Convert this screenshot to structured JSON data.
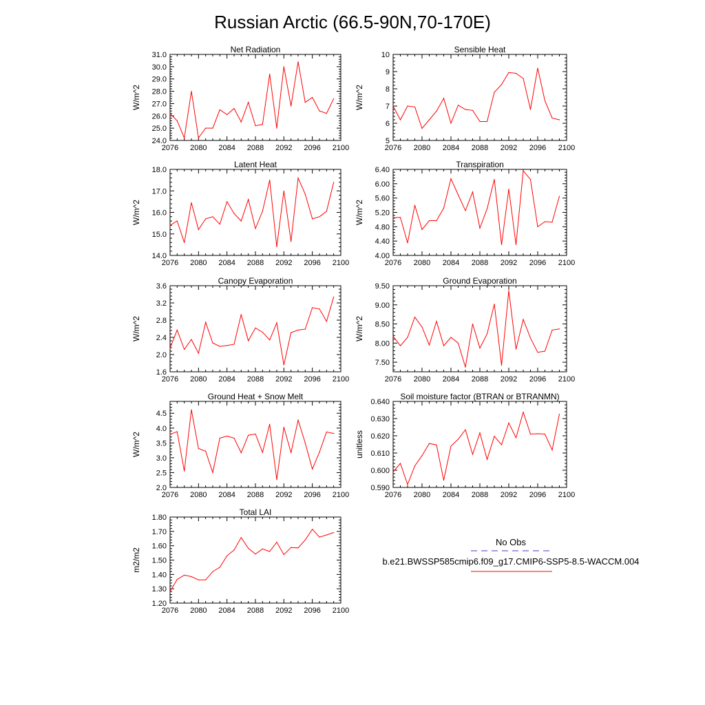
{
  "title": "Russian Arctic (66.5-90N,70-170E)",
  "legend": {
    "entries": [
      {
        "label": "No Obs",
        "color": "#3f3fbf",
        "style": "dashed"
      },
      {
        "label": "b.e21.BWSSP585cmip6.f09_g17.CMIP6-SSP5-8.5-WACCM.004",
        "color": "#ff0000",
        "style": "solid"
      }
    ]
  },
  "chart_data": [
    {
      "type": "line",
      "title": "Net Radiation",
      "ylabel": "W/m^2",
      "xlim": [
        2076,
        2100
      ],
      "ylim": [
        24.0,
        31.0
      ],
      "xticks": [
        "2076",
        "2080",
        "2084",
        "2088",
        "2092",
        "2096",
        "2100"
      ],
      "yticks": [
        "24.0",
        "25.0",
        "26.0",
        "27.0",
        "28.0",
        "29.0",
        "30.0",
        "31.0"
      ],
      "x": [
        2076,
        2077,
        2078,
        2079,
        2080,
        2081,
        2082,
        2083,
        2084,
        2085,
        2086,
        2087,
        2088,
        2089,
        2090,
        2091,
        2092,
        2093,
        2094,
        2095,
        2096,
        2097,
        2098,
        2099
      ],
      "values": [
        26.2,
        25.6,
        24.2,
        28.0,
        24.2,
        25.0,
        25.0,
        26.5,
        26.1,
        26.6,
        25.5,
        27.1,
        25.2,
        25.3,
        29.4,
        25.0,
        30.0,
        26.8,
        30.4,
        27.1,
        27.5,
        26.4,
        26.2,
        27.4
      ],
      "color": "#ff0000"
    },
    {
      "type": "line",
      "title": "Sensible Heat",
      "ylabel": "W/m^2",
      "xlim": [
        2076,
        2100
      ],
      "ylim": [
        5,
        10
      ],
      "xticks": [
        "2076",
        "2080",
        "2084",
        "2088",
        "2092",
        "2096",
        "2100"
      ],
      "yticks": [
        "5",
        "6",
        "7",
        "8",
        "9",
        "10"
      ],
      "x": [
        2076,
        2077,
        2078,
        2079,
        2080,
        2081,
        2082,
        2083,
        2084,
        2085,
        2086,
        2087,
        2088,
        2089,
        2090,
        2091,
        2092,
        2093,
        2094,
        2095,
        2096,
        2097,
        2098,
        2099
      ],
      "values": [
        7.0,
        6.2,
        7.0,
        6.95,
        5.7,
        6.2,
        6.7,
        7.45,
        6.0,
        7.05,
        6.8,
        6.75,
        6.1,
        6.1,
        7.8,
        8.25,
        8.95,
        8.9,
        8.6,
        6.8,
        9.2,
        7.3,
        6.3,
        6.2
      ],
      "color": "#ff0000"
    },
    {
      "type": "line",
      "title": "Latent Heat",
      "ylabel": "W/m^2",
      "xlim": [
        2076,
        2100
      ],
      "ylim": [
        14.0,
        18.0
      ],
      "xticks": [
        "2076",
        "2080",
        "2084",
        "2088",
        "2092",
        "2096",
        "2100"
      ],
      "yticks": [
        "14.0",
        "15.0",
        "16.0",
        "17.0",
        "18.0"
      ],
      "x": [
        2076,
        2077,
        2078,
        2079,
        2080,
        2081,
        2082,
        2083,
        2084,
        2085,
        2086,
        2087,
        2088,
        2089,
        2090,
        2091,
        2092,
        2093,
        2094,
        2095,
        2096,
        2097,
        2098,
        2099
      ],
      "values": [
        15.4,
        15.6,
        14.6,
        16.45,
        15.2,
        15.7,
        15.8,
        15.45,
        16.5,
        15.95,
        15.6,
        16.6,
        15.25,
        16.05,
        17.5,
        14.4,
        17.0,
        14.65,
        17.6,
        16.85,
        15.7,
        15.8,
        16.05,
        17.4
      ],
      "color": "#ff0000"
    },
    {
      "type": "line",
      "title": "Transpiration",
      "ylabel": "W/m^2",
      "xlim": [
        2076,
        2100
      ],
      "ylim": [
        4.0,
        6.4
      ],
      "xticks": [
        "2076",
        "2080",
        "2084",
        "2088",
        "2092",
        "2096",
        "2100"
      ],
      "yticks": [
        "4.00",
        "4.40",
        "4.80",
        "5.20",
        "5.60",
        "6.00",
        "6.40"
      ],
      "x": [
        2076,
        2077,
        2078,
        2079,
        2080,
        2081,
        2082,
        2083,
        2084,
        2085,
        2086,
        2087,
        2088,
        2089,
        2090,
        2091,
        2092,
        2093,
        2094,
        2095,
        2096,
        2097,
        2098,
        2099
      ],
      "values": [
        5.05,
        5.06,
        4.35,
        5.4,
        4.72,
        4.97,
        4.97,
        5.32,
        6.14,
        5.69,
        5.25,
        5.77,
        4.76,
        5.3,
        6.12,
        4.3,
        5.85,
        4.3,
        6.36,
        6.12,
        4.8,
        4.94,
        4.93,
        5.65
      ],
      "color": "#ff0000"
    },
    {
      "type": "line",
      "title": "Canopy Evaporation",
      "ylabel": "W/m^2",
      "xlim": [
        2076,
        2100
      ],
      "ylim": [
        1.6,
        3.6
      ],
      "xticks": [
        "2076",
        "2080",
        "2084",
        "2088",
        "2092",
        "2096",
        "2100"
      ],
      "yticks": [
        "1.6",
        "2.0",
        "2.4",
        "2.8",
        "3.2",
        "3.6"
      ],
      "x": [
        2076,
        2077,
        2078,
        2079,
        2080,
        2081,
        2082,
        2083,
        2084,
        2085,
        2086,
        2087,
        2088,
        2089,
        2090,
        2091,
        2092,
        2093,
        2094,
        2095,
        2096,
        2097,
        2098,
        2099
      ],
      "values": [
        2.15,
        2.57,
        2.12,
        2.35,
        2.03,
        2.75,
        2.27,
        2.19,
        2.21,
        2.24,
        2.93,
        2.32,
        2.62,
        2.52,
        2.34,
        2.74,
        1.76,
        2.51,
        2.57,
        2.59,
        3.09,
        3.06,
        2.77,
        3.34
      ],
      "color": "#ff0000"
    },
    {
      "type": "line",
      "title": "Ground Evaporation",
      "ylabel": "W/m^2",
      "xlim": [
        2076,
        2100
      ],
      "ylim": [
        7.25,
        9.5
      ],
      "xticks": [
        "2076",
        "2080",
        "2084",
        "2088",
        "2092",
        "2096",
        "2100"
      ],
      "yticks": [
        "7.50",
        "8.00",
        "8.50",
        "9.00",
        "9.50"
      ],
      "x": [
        2076,
        2077,
        2078,
        2079,
        2080,
        2081,
        2082,
        2083,
        2084,
        2085,
        2086,
        2087,
        2088,
        2089,
        2090,
        2091,
        2092,
        2093,
        2094,
        2095,
        2096,
        2097,
        2098,
        2099
      ],
      "values": [
        8.18,
        7.93,
        8.15,
        8.68,
        8.42,
        7.95,
        8.57,
        7.93,
        8.15,
        8.0,
        7.37,
        8.5,
        7.87,
        8.24,
        9.02,
        7.42,
        9.37,
        7.84,
        8.62,
        8.13,
        7.76,
        7.79,
        8.34,
        8.37
      ],
      "color": "#ff0000"
    },
    {
      "type": "line",
      "title": "Ground Heat + Snow Melt",
      "ylabel": "W/m^2",
      "xlim": [
        2076,
        2100
      ],
      "ylim": [
        2.0,
        4.9
      ],
      "xticks": [
        "2076",
        "2080",
        "2084",
        "2088",
        "2092",
        "2096",
        "2100"
      ],
      "yticks": [
        "2.0",
        "2.5",
        "3.0",
        "3.5",
        "4.0",
        "4.5"
      ],
      "x": [
        2076,
        2077,
        2078,
        2079,
        2080,
        2081,
        2082,
        2083,
        2084,
        2085,
        2086,
        2087,
        2088,
        2089,
        2090,
        2091,
        2092,
        2093,
        2094,
        2095,
        2096,
        2097,
        2098,
        2099
      ],
      "values": [
        3.79,
        3.88,
        2.55,
        4.62,
        3.31,
        3.22,
        2.5,
        3.66,
        3.73,
        3.66,
        3.17,
        3.76,
        3.8,
        3.18,
        4.13,
        2.26,
        4.03,
        3.17,
        4.27,
        3.5,
        2.62,
        3.19,
        3.87,
        3.82
      ],
      "color": "#ff0000"
    },
    {
      "type": "line",
      "title": "Soil moisture factor (BTRAN or BTRANMN)",
      "ylabel": "unitless",
      "xlim": [
        2076,
        2100
      ],
      "ylim": [
        0.59,
        0.64
      ],
      "xticks": [
        "2076",
        "2080",
        "2084",
        "2088",
        "2092",
        "2096",
        "2100"
      ],
      "yticks": [
        "0.590",
        "0.600",
        "0.610",
        "0.620",
        "0.630",
        "0.640"
      ],
      "x": [
        2076,
        2077,
        2078,
        2079,
        2080,
        2081,
        2082,
        2083,
        2084,
        2085,
        2086,
        2087,
        2088,
        2089,
        2090,
        2091,
        2092,
        2093,
        2094,
        2095,
        2096,
        2097,
        2098,
        2099
      ],
      "values": [
        0.599,
        0.604,
        0.5917,
        0.6025,
        0.6085,
        0.6155,
        0.6147,
        0.5942,
        0.614,
        0.618,
        0.6235,
        0.6092,
        0.6217,
        0.6063,
        0.6197,
        0.6148,
        0.6275,
        0.6189,
        0.6337,
        0.621,
        0.6212,
        0.621,
        0.6117,
        0.6326
      ],
      "color": "#ff0000"
    },
    {
      "type": "line",
      "title": "Total LAI",
      "ylabel": "m2/m2",
      "xlim": [
        2076,
        2100
      ],
      "ylim": [
        1.2,
        1.8
      ],
      "xticks": [
        "2076",
        "2080",
        "2084",
        "2088",
        "2092",
        "2096",
        "2100"
      ],
      "yticks": [
        "1.20",
        "1.30",
        "1.40",
        "1.50",
        "1.60",
        "1.70",
        "1.80"
      ],
      "x": [
        2076,
        2077,
        2078,
        2079,
        2080,
        2081,
        2082,
        2083,
        2084,
        2085,
        2086,
        2087,
        2088,
        2089,
        2090,
        2091,
        2092,
        2093,
        2094,
        2095,
        2096,
        2097,
        2098,
        2099
      ],
      "values": [
        1.28,
        1.365,
        1.395,
        1.385,
        1.362,
        1.362,
        1.42,
        1.45,
        1.53,
        1.57,
        1.657,
        1.582,
        1.542,
        1.578,
        1.56,
        1.625,
        1.538,
        1.588,
        1.585,
        1.64,
        1.715,
        1.66,
        1.675,
        1.692
      ],
      "color": "#ff0000"
    }
  ]
}
